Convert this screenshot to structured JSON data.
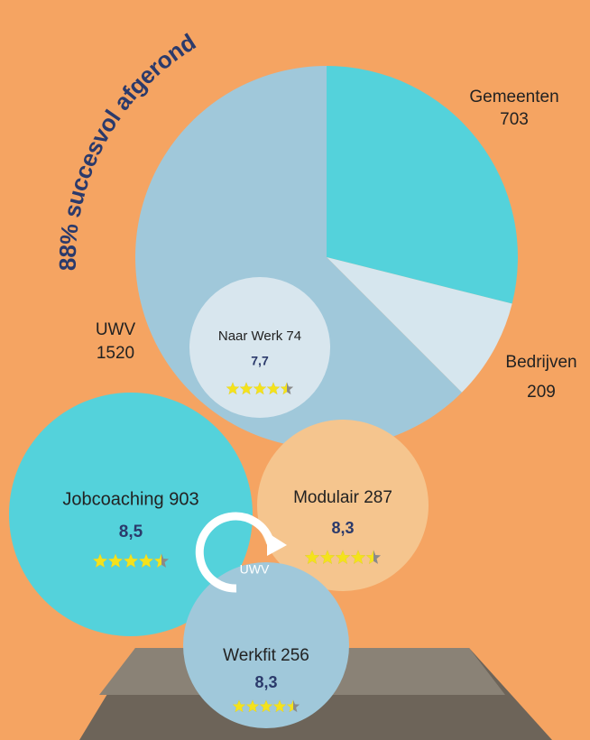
{
  "chart_data": {
    "type": "pie",
    "title": "88% succesvol afgerond",
    "categories": [
      "Gemeenten",
      "Bedrijven",
      "UWV"
    ],
    "values": [
      703,
      209,
      1520
    ],
    "colors": [
      "#54D2DB",
      "#D6E6EE",
      "#A0C8DA"
    ]
  },
  "bubbles": [
    {
      "label": "Naar Werk 74",
      "score": "7,7",
      "stars": 4.5,
      "color": "#D8E6EE"
    },
    {
      "label": "Jobcoaching 903",
      "score": "8,5",
      "stars": 4.5,
      "color": "#54D2DB"
    },
    {
      "label": "Modulair 287",
      "score": "8,3",
      "stars": 4.5,
      "color": "#F5C58E"
    },
    {
      "label": "Werkfit 256",
      "score": "8,3",
      "stars": 4.5,
      "color": "#A0C8DA"
    }
  ],
  "logo": "UWV"
}
